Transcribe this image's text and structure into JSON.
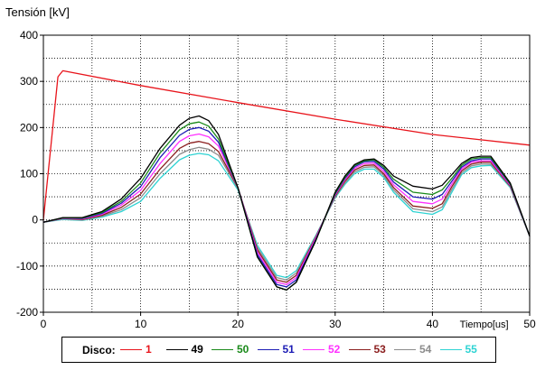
{
  "chart_data": {
    "type": "line",
    "ylabel": "Tensión [kV]",
    "xlabel": "Tiempo",
    "xunit": "[us]",
    "xlim": [
      0,
      50
    ],
    "ylim": [
      -200,
      400
    ],
    "xticks": [
      0,
      10,
      20,
      30,
      40,
      50
    ],
    "yticks": [
      -200,
      -100,
      0,
      100,
      200,
      300,
      400
    ],
    "grid": true,
    "legend": {
      "title": "Disco:",
      "placement": "bottom"
    },
    "x": [
      0,
      2,
      4,
      6,
      8,
      10,
      12,
      14,
      15,
      16,
      17,
      18,
      20,
      22,
      24,
      25,
      26,
      28,
      30,
      31,
      32,
      33,
      34,
      35,
      36,
      38,
      40,
      41,
      42,
      43,
      44,
      45,
      46,
      48,
      50
    ],
    "series": [
      {
        "name": "1",
        "color": "#e8141b",
        "x": [
          0,
          1.5,
          2,
          10,
          20,
          30,
          40,
          50
        ],
        "y": [
          0,
          310,
          323,
          291,
          254,
          218,
          185,
          162
        ]
      },
      {
        "name": "49",
        "color": "#000000",
        "y": [
          -5,
          5,
          5,
          18,
          45,
          90,
          155,
          205,
          220,
          225,
          215,
          185,
          70,
          -80,
          -145,
          -152,
          -135,
          -45,
          60,
          95,
          120,
          130,
          132,
          118,
          95,
          73,
          67,
          75,
          98,
          122,
          135,
          138,
          138,
          80,
          -35
        ]
      },
      {
        "name": "50",
        "color": "#1a8a1a",
        "y": [
          -5,
          4,
          4,
          16,
          40,
          80,
          145,
          195,
          208,
          212,
          203,
          175,
          70,
          -80,
          -145,
          -152,
          -135,
          -45,
          58,
          92,
          118,
          128,
          130,
          114,
          88,
          60,
          55,
          65,
          90,
          118,
          132,
          135,
          135,
          78,
          -35
        ]
      },
      {
        "name": "51",
        "color": "#1c1cb5",
        "y": [
          -5,
          4,
          3,
          14,
          36,
          72,
          135,
          183,
          196,
          200,
          192,
          168,
          70,
          -75,
          -140,
          -145,
          -130,
          -43,
          56,
          90,
          115,
          126,
          127,
          110,
          82,
          50,
          45,
          55,
          84,
          114,
          128,
          132,
          132,
          77,
          -35
        ]
      },
      {
        "name": "52",
        "color": "#ff30ff",
        "y": [
          -5,
          3,
          2,
          12,
          32,
          64,
          122,
          170,
          182,
          186,
          180,
          160,
          70,
          -70,
          -135,
          -140,
          -125,
          -40,
          54,
          87,
          112,
          122,
          123,
          105,
          76,
          40,
          35,
          45,
          78,
          110,
          125,
          128,
          128,
          75,
          -35
        ]
      },
      {
        "name": "53",
        "color": "#8b1e1e",
        "y": [
          -5,
          3,
          1,
          10,
          27,
          56,
          110,
          155,
          166,
          170,
          165,
          148,
          70,
          -65,
          -130,
          -135,
          -120,
          -38,
          52,
          84,
          108,
          118,
          119,
          100,
          70,
          30,
          25,
          35,
          72,
          106,
          121,
          125,
          125,
          73,
          -35
        ]
      },
      {
        "name": "54",
        "color": "#8c8c8c",
        "y": [
          -5,
          2,
          0,
          8,
          22,
          48,
          100,
          142,
          152,
          157,
          153,
          140,
          68,
          -60,
          -125,
          -130,
          -115,
          -36,
          50,
          80,
          104,
          114,
          115,
          96,
          65,
          24,
          18,
          28,
          66,
          102,
          117,
          121,
          121,
          72,
          -35
        ]
      },
      {
        "name": "55",
        "color": "#2ed3d3",
        "y": [
          -5,
          1,
          -1,
          6,
          18,
          40,
          90,
          130,
          140,
          144,
          141,
          128,
          65,
          -55,
          -120,
          -125,
          -110,
          -34,
          48,
          77,
          100,
          110,
          110,
          92,
          60,
          18,
          12,
          22,
          60,
          98,
          113,
          117,
          118,
          70,
          -35
        ]
      }
    ]
  }
}
